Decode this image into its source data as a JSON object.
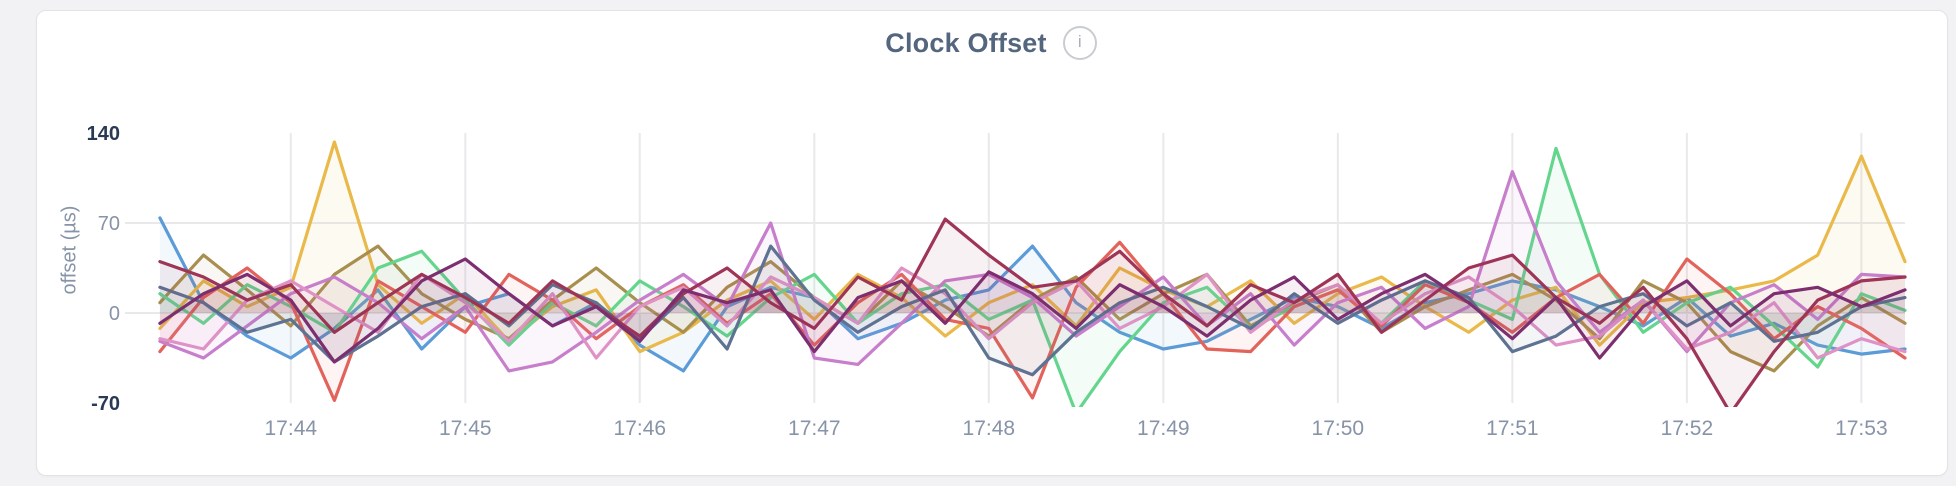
{
  "header": {
    "title": "Clock Offset",
    "info_glyph": "i"
  },
  "chart_data": {
    "type": "line",
    "title": "Clock Offset",
    "ylabel": "offset (µs)",
    "xlabel": "",
    "ylim": [
      -70,
      140
    ],
    "x_range_minutes": [
      43.05,
      53.25
    ],
    "sample_start_minute": 43.25,
    "sample_step_minutes": 0.25,
    "grid": {
      "vertical_ticks": true,
      "horizontal_at": [
        70,
        0
      ]
    },
    "legend": "none",
    "y_ticks": [
      {
        "label": "140",
        "value": 140,
        "emphasized": true
      },
      {
        "label": "70",
        "value": 70,
        "emphasized": false
      },
      {
        "label": "0",
        "value": 0,
        "emphasized": false
      },
      {
        "label": "-70",
        "value": -70,
        "emphasized": true
      }
    ],
    "x_ticks": [
      {
        "label": "17:44",
        "minute": 44
      },
      {
        "label": "17:45",
        "minute": 45
      },
      {
        "label": "17:46",
        "minute": 46
      },
      {
        "label": "17:47",
        "minute": 47
      },
      {
        "label": "17:48",
        "minute": 48
      },
      {
        "label": "17:49",
        "minute": 49
      },
      {
        "label": "17:50",
        "minute": 50
      },
      {
        "label": "17:51",
        "minute": 51
      },
      {
        "label": "17:52",
        "minute": 52
      },
      {
        "label": "17:53",
        "minute": 53
      }
    ],
    "series": [
      {
        "name": "series-blue",
        "color": "#5B9BD8",
        "values": [
          74,
          8,
          -18,
          -35,
          -12,
          18,
          -28,
          5,
          15,
          -10,
          8,
          -25,
          -45,
          5,
          20,
          12,
          -20,
          -8,
          10,
          18,
          52,
          8,
          -15,
          -28,
          -22,
          -5,
          12,
          5,
          -12,
          8,
          15,
          25,
          18,
          5,
          -10,
          12,
          -18,
          -8,
          -25,
          -32,
          -28
        ]
      },
      {
        "name": "series-amber",
        "color": "#E9B949",
        "values": [
          -12,
          25,
          5,
          20,
          133,
          22,
          -8,
          15,
          -22,
          5,
          18,
          -30,
          -15,
          10,
          25,
          -5,
          30,
          12,
          -18,
          8,
          22,
          -10,
          35,
          18,
          5,
          25,
          -8,
          15,
          28,
          5,
          -15,
          10,
          20,
          -25,
          8,
          12,
          18,
          25,
          45,
          122,
          40
        ]
      },
      {
        "name": "series-olive",
        "color": "#A98F4E",
        "values": [
          8,
          45,
          18,
          -10,
          30,
          52,
          15,
          -5,
          -20,
          10,
          35,
          8,
          -15,
          20,
          40,
          12,
          -8,
          25,
          5,
          -18,
          10,
          28,
          -5,
          15,
          30,
          -10,
          8,
          22,
          -15,
          5,
          18,
          30,
          10,
          -20,
          25,
          8,
          -30,
          -45,
          -10,
          12,
          -8
        ]
      },
      {
        "name": "series-green",
        "color": "#63D58D",
        "values": [
          15,
          -8,
          22,
          5,
          -15,
          35,
          48,
          10,
          -25,
          8,
          -10,
          25,
          5,
          -18,
          12,
          30,
          -8,
          15,
          22,
          -5,
          10,
          -78,
          -30,
          8,
          20,
          -12,
          5,
          18,
          -8,
          25,
          10,
          -5,
          128,
          30,
          -15,
          8,
          20,
          -10,
          -42,
          15,
          2
        ]
      },
      {
        "name": "series-salmon",
        "color": "#E2635B",
        "values": [
          -30,
          12,
          35,
          8,
          -68,
          25,
          5,
          -15,
          30,
          10,
          -20,
          5,
          22,
          -8,
          15,
          -25,
          8,
          30,
          -5,
          -12,
          -66,
          20,
          55,
          15,
          -28,
          -30,
          5,
          18,
          -10,
          22,
          8,
          -15,
          12,
          30,
          -8,
          42,
          15,
          -20,
          5,
          -12,
          -35
        ]
      },
      {
        "name": "series-violet",
        "color": "#C77ECB",
        "values": [
          -22,
          -35,
          -10,
          15,
          28,
          8,
          -20,
          5,
          -45,
          -38,
          -15,
          10,
          30,
          5,
          70,
          -35,
          -40,
          -8,
          25,
          30,
          12,
          -18,
          5,
          28,
          -10,
          15,
          -25,
          8,
          20,
          -12,
          5,
          110,
          25,
          -15,
          10,
          -30,
          8,
          22,
          -5,
          30,
          28
        ]
      },
      {
        "name": "series-pink",
        "color": "#DE92C6",
        "values": [
          -20,
          -28,
          10,
          25,
          5,
          -15,
          30,
          8,
          -22,
          15,
          -35,
          5,
          20,
          -10,
          28,
          12,
          -8,
          35,
          15,
          -20,
          8,
          25,
          -12,
          5,
          30,
          -15,
          10,
          22,
          -8,
          15,
          28,
          5,
          -25,
          -18,
          10,
          -28,
          -15,
          8,
          -35,
          -20,
          -30
        ]
      },
      {
        "name": "series-slate",
        "color": "#5E7292",
        "values": [
          20,
          8,
          -15,
          -5,
          -38,
          -18,
          5,
          15,
          -10,
          22,
          8,
          -20,
          12,
          -28,
          52,
          10,
          -15,
          5,
          18,
          -35,
          -48,
          -15,
          8,
          20,
          5,
          -12,
          15,
          -8,
          10,
          25,
          12,
          -30,
          -18,
          5,
          15,
          -10,
          8,
          -22,
          -15,
          5,
          12
        ]
      },
      {
        "name": "series-wine",
        "color": "#9E3456",
        "values": [
          40,
          28,
          10,
          22,
          -15,
          8,
          30,
          12,
          -8,
          25,
          5,
          -18,
          15,
          35,
          8,
          -12,
          28,
          10,
          73,
          45,
          20,
          25,
          48,
          15,
          -10,
          22,
          8,
          30,
          -15,
          10,
          35,
          45,
          12,
          -8,
          20,
          -20,
          -78,
          -30,
          10,
          25,
          28
        ]
      },
      {
        "name": "series-purple",
        "color": "#7C2E6F",
        "values": [
          -8,
          15,
          30,
          10,
          -38,
          -12,
          25,
          42,
          15,
          -10,
          5,
          -22,
          18,
          8,
          18,
          -30,
          12,
          25,
          -8,
          32,
          15,
          -12,
          22,
          5,
          -18,
          10,
          28,
          -5,
          15,
          30,
          8,
          -20,
          12,
          -35,
          5,
          25,
          -10,
          15,
          20,
          5,
          18
        ]
      }
    ],
    "style": {
      "grid_color": "#e9e9ec",
      "tick_label_color": "#8793a7",
      "tick_label_emphasized_color": "#2a3a55",
      "title_color": "#54657e",
      "line_width": 3.2,
      "area_fill_opacity": 0.07
    }
  }
}
